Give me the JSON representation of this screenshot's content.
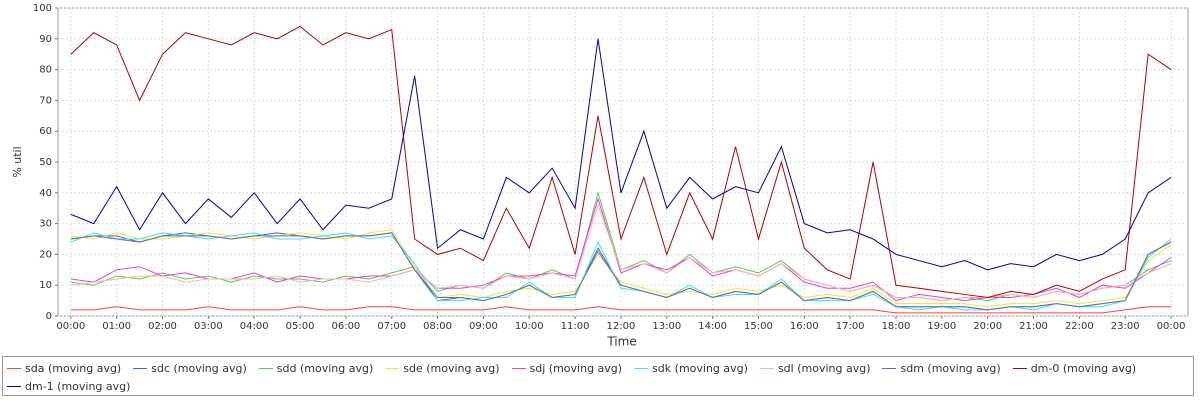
{
  "chart_data": {
    "type": "line",
    "xlabel": "Time",
    "ylabel": "% util",
    "x": [
      0,
      0.5,
      1,
      1.5,
      2,
      2.5,
      3,
      3.5,
      4,
      4.5,
      5,
      5.5,
      6,
      6.5,
      7,
      7.5,
      8,
      8.5,
      9,
      9.5,
      10,
      10.5,
      11,
      11.5,
      12,
      12.5,
      13,
      13.5,
      14,
      14.5,
      15,
      15.5,
      16,
      16.5,
      17,
      17.5,
      18,
      18.5,
      19,
      19.5,
      20,
      20.5,
      21,
      21.5,
      22,
      22.5,
      23,
      23.5,
      24
    ],
    "xlim": [
      -0.28,
      24.37
    ],
    "xticks": [
      {
        "value": 0,
        "label": "00:00"
      },
      {
        "value": 1,
        "label": "01:00"
      },
      {
        "value": 2,
        "label": "02:00"
      },
      {
        "value": 3,
        "label": "03:00"
      },
      {
        "value": 4,
        "label": "04:00"
      },
      {
        "value": 5,
        "label": "05:00"
      },
      {
        "value": 6,
        "label": "06:00"
      },
      {
        "value": 7,
        "label": "07:00"
      },
      {
        "value": 8,
        "label": "08:00"
      },
      {
        "value": 9,
        "label": "09:00"
      },
      {
        "value": 10,
        "label": "10:00"
      },
      {
        "value": 11,
        "label": "11:00"
      },
      {
        "value": 12,
        "label": "12:00"
      },
      {
        "value": 13,
        "label": "13:00"
      },
      {
        "value": 14,
        "label": "14:00"
      },
      {
        "value": 15,
        "label": "15:00"
      },
      {
        "value": 16,
        "label": "16:00"
      },
      {
        "value": 17,
        "label": "17:00"
      },
      {
        "value": 18,
        "label": "18:00"
      },
      {
        "value": 19,
        "label": "19:00"
      },
      {
        "value": 20,
        "label": "20:00"
      },
      {
        "value": 21,
        "label": "21:00"
      },
      {
        "value": 22,
        "label": "22:00"
      },
      {
        "value": 23,
        "label": "23:00"
      },
      {
        "value": 24,
        "label": "00:00"
      }
    ],
    "ylim": [
      0,
      100
    ],
    "yticks": [
      0,
      10,
      20,
      30,
      40,
      50,
      60,
      70,
      80,
      90,
      100
    ],
    "grid": true,
    "series": [
      {
        "name": "sda (moving avg)",
        "color": "#ff4040",
        "values": [
          2,
          2,
          3,
          2,
          2,
          2,
          3,
          2,
          2,
          2,
          3,
          2,
          2,
          3,
          3,
          2,
          2,
          2,
          2,
          3,
          2,
          2,
          2,
          3,
          2,
          2,
          2,
          2,
          2,
          2,
          2,
          2,
          2,
          2,
          2,
          2,
          1,
          1,
          1,
          1,
          1,
          1,
          1,
          1,
          1,
          1,
          2,
          3,
          3
        ]
      },
      {
        "name": "sdc (moving avg)",
        "color": "#4060ff",
        "values": [
          25,
          26,
          26,
          24,
          26,
          27,
          26,
          25,
          26,
          27,
          26,
          25,
          26,
          26,
          27,
          15,
          5,
          6,
          5,
          7,
          10,
          6,
          7,
          22,
          10,
          8,
          6,
          9,
          6,
          8,
          7,
          11,
          5,
          6,
          5,
          8,
          3,
          3,
          3,
          3,
          2,
          3,
          3,
          4,
          3,
          4,
          5,
          20,
          24
        ]
      },
      {
        "name": "sdd (moving avg)",
        "color": "#50d050",
        "values": [
          11,
          10,
          13,
          12,
          14,
          12,
          13,
          11,
          13,
          12,
          12,
          11,
          13,
          12,
          14,
          16,
          8,
          10,
          9,
          14,
          12,
          15,
          12,
          40,
          15,
          18,
          14,
          20,
          14,
          16,
          14,
          18,
          12,
          10,
          8,
          10,
          6,
          6,
          5,
          6,
          5,
          7,
          6,
          8,
          7,
          9,
          10,
          15,
          18
        ]
      },
      {
        "name": "sde (moving avg)",
        "color": "#e8e840",
        "values": [
          26,
          25,
          27,
          25,
          25,
          26,
          27,
          26,
          25,
          26,
          27,
          26,
          25,
          27,
          28,
          16,
          6,
          7,
          6,
          8,
          9,
          7,
          8,
          20,
          11,
          9,
          7,
          8,
          7,
          9,
          8,
          10,
          6,
          7,
          6,
          9,
          4,
          4,
          4,
          4,
          3,
          4,
          4,
          5,
          4,
          5,
          6,
          18,
          23
        ]
      },
      {
        "name": "sdj (moving avg)",
        "color": "#e040e0",
        "values": [
          12,
          11,
          15,
          16,
          13,
          14,
          12,
          12,
          14,
          11,
          13,
          12,
          12,
          13,
          13,
          15,
          9,
          9,
          10,
          13,
          13,
          14,
          13,
          38,
          14,
          17,
          15,
          19,
          13,
          15,
          13,
          17,
          11,
          9,
          9,
          11,
          5,
          7,
          6,
          5,
          6,
          6,
          7,
          9,
          6,
          10,
          9,
          14,
          19
        ]
      },
      {
        "name": "sdk (moving avg)",
        "color": "#40e0f0",
        "values": [
          24,
          27,
          25,
          25,
          27,
          26,
          25,
          26,
          27,
          25,
          25,
          26,
          27,
          25,
          26,
          17,
          5,
          5,
          6,
          6,
          11,
          6,
          6,
          24,
          9,
          8,
          6,
          10,
          6,
          7,
          7,
          12,
          5,
          5,
          5,
          7,
          3,
          2,
          3,
          2,
          2,
          3,
          2,
          4,
          3,
          3,
          5,
          19,
          25
        ]
      },
      {
        "name": "sdl (moving avg)",
        "color": "#ffafaf",
        "values": [
          10,
          11,
          12,
          13,
          13,
          11,
          12,
          12,
          12,
          13,
          11,
          12,
          12,
          11,
          13,
          15,
          9,
          10,
          9,
          13,
          12,
          14,
          12,
          36,
          15,
          17,
          14,
          19,
          14,
          15,
          13,
          17,
          12,
          10,
          8,
          10,
          6,
          6,
          5,
          6,
          6,
          7,
          6,
          8,
          7,
          9,
          10,
          14,
          17
        ]
      },
      {
        "name": "sdm (moving avg)",
        "color": "#707090",
        "values": [
          25,
          26,
          25,
          24,
          26,
          26,
          26,
          25,
          26,
          26,
          26,
          25,
          26,
          26,
          27,
          15,
          6,
          6,
          5,
          7,
          10,
          6,
          7,
          21,
          10,
          8,
          6,
          9,
          6,
          8,
          7,
          11,
          5,
          6,
          5,
          8,
          3,
          3,
          3,
          3,
          2,
          3,
          3,
          4,
          3,
          4,
          5,
          20,
          24
        ]
      },
      {
        "name": "dm-0 (moving avg)",
        "color": "#b00000",
        "values": [
          85,
          92,
          88,
          70,
          85,
          92,
          90,
          88,
          92,
          90,
          94,
          88,
          92,
          90,
          93,
          25,
          20,
          22,
          18,
          35,
          22,
          45,
          20,
          65,
          25,
          45,
          20,
          40,
          25,
          55,
          25,
          50,
          22,
          15,
          12,
          50,
          10,
          9,
          8,
          7,
          6,
          8,
          7,
          10,
          8,
          12,
          15,
          85,
          80
        ]
      },
      {
        "name": "dm-1 (moving avg)",
        "color": "#0000b0",
        "values": [
          33,
          30,
          42,
          28,
          40,
          30,
          38,
          32,
          40,
          30,
          38,
          28,
          36,
          35,
          38,
          78,
          22,
          28,
          25,
          45,
          40,
          48,
          35,
          90,
          40,
          60,
          35,
          45,
          38,
          42,
          40,
          55,
          30,
          27,
          28,
          25,
          20,
          18,
          16,
          18,
          15,
          17,
          16,
          20,
          18,
          20,
          25,
          40,
          45
        ]
      }
    ]
  }
}
